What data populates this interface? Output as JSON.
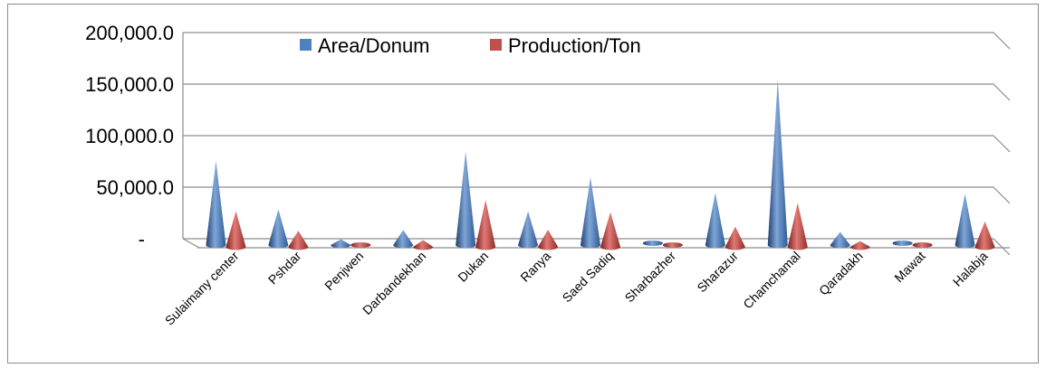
{
  "chart_data": {
    "type": "bar",
    "style": "3d-cone",
    "categories": [
      "Sulaimany center",
      "Pshdar",
      "Penjwen",
      "Darbandekhan",
      "Dukan",
      "Ranya",
      "Saed Sadiq",
      "Sharbazher",
      "Sharazur",
      "Chamchamal",
      "Qaradakh",
      "Mawat",
      "Halabja"
    ],
    "series": [
      {
        "name": "Area/Donum",
        "color": "#4F81BD",
        "values": [
          79000,
          32000,
          3000,
          12000,
          88000,
          30000,
          63000,
          0,
          48000,
          158000,
          10000,
          0,
          47000
        ]
      },
      {
        "name": "Production/Ton",
        "color": "#C0504D",
        "values": [
          32000,
          13000,
          0,
          4000,
          43000,
          14000,
          31000,
          0,
          17000,
          40000,
          3000,
          0,
          22000
        ]
      }
    ],
    "y_ticks": [
      "200,000.0",
      "150,000.0",
      "100,000.0",
      "50,000.0",
      "-"
    ],
    "ylim": [
      0,
      200000
    ],
    "grid": true,
    "legend_position": "top"
  }
}
